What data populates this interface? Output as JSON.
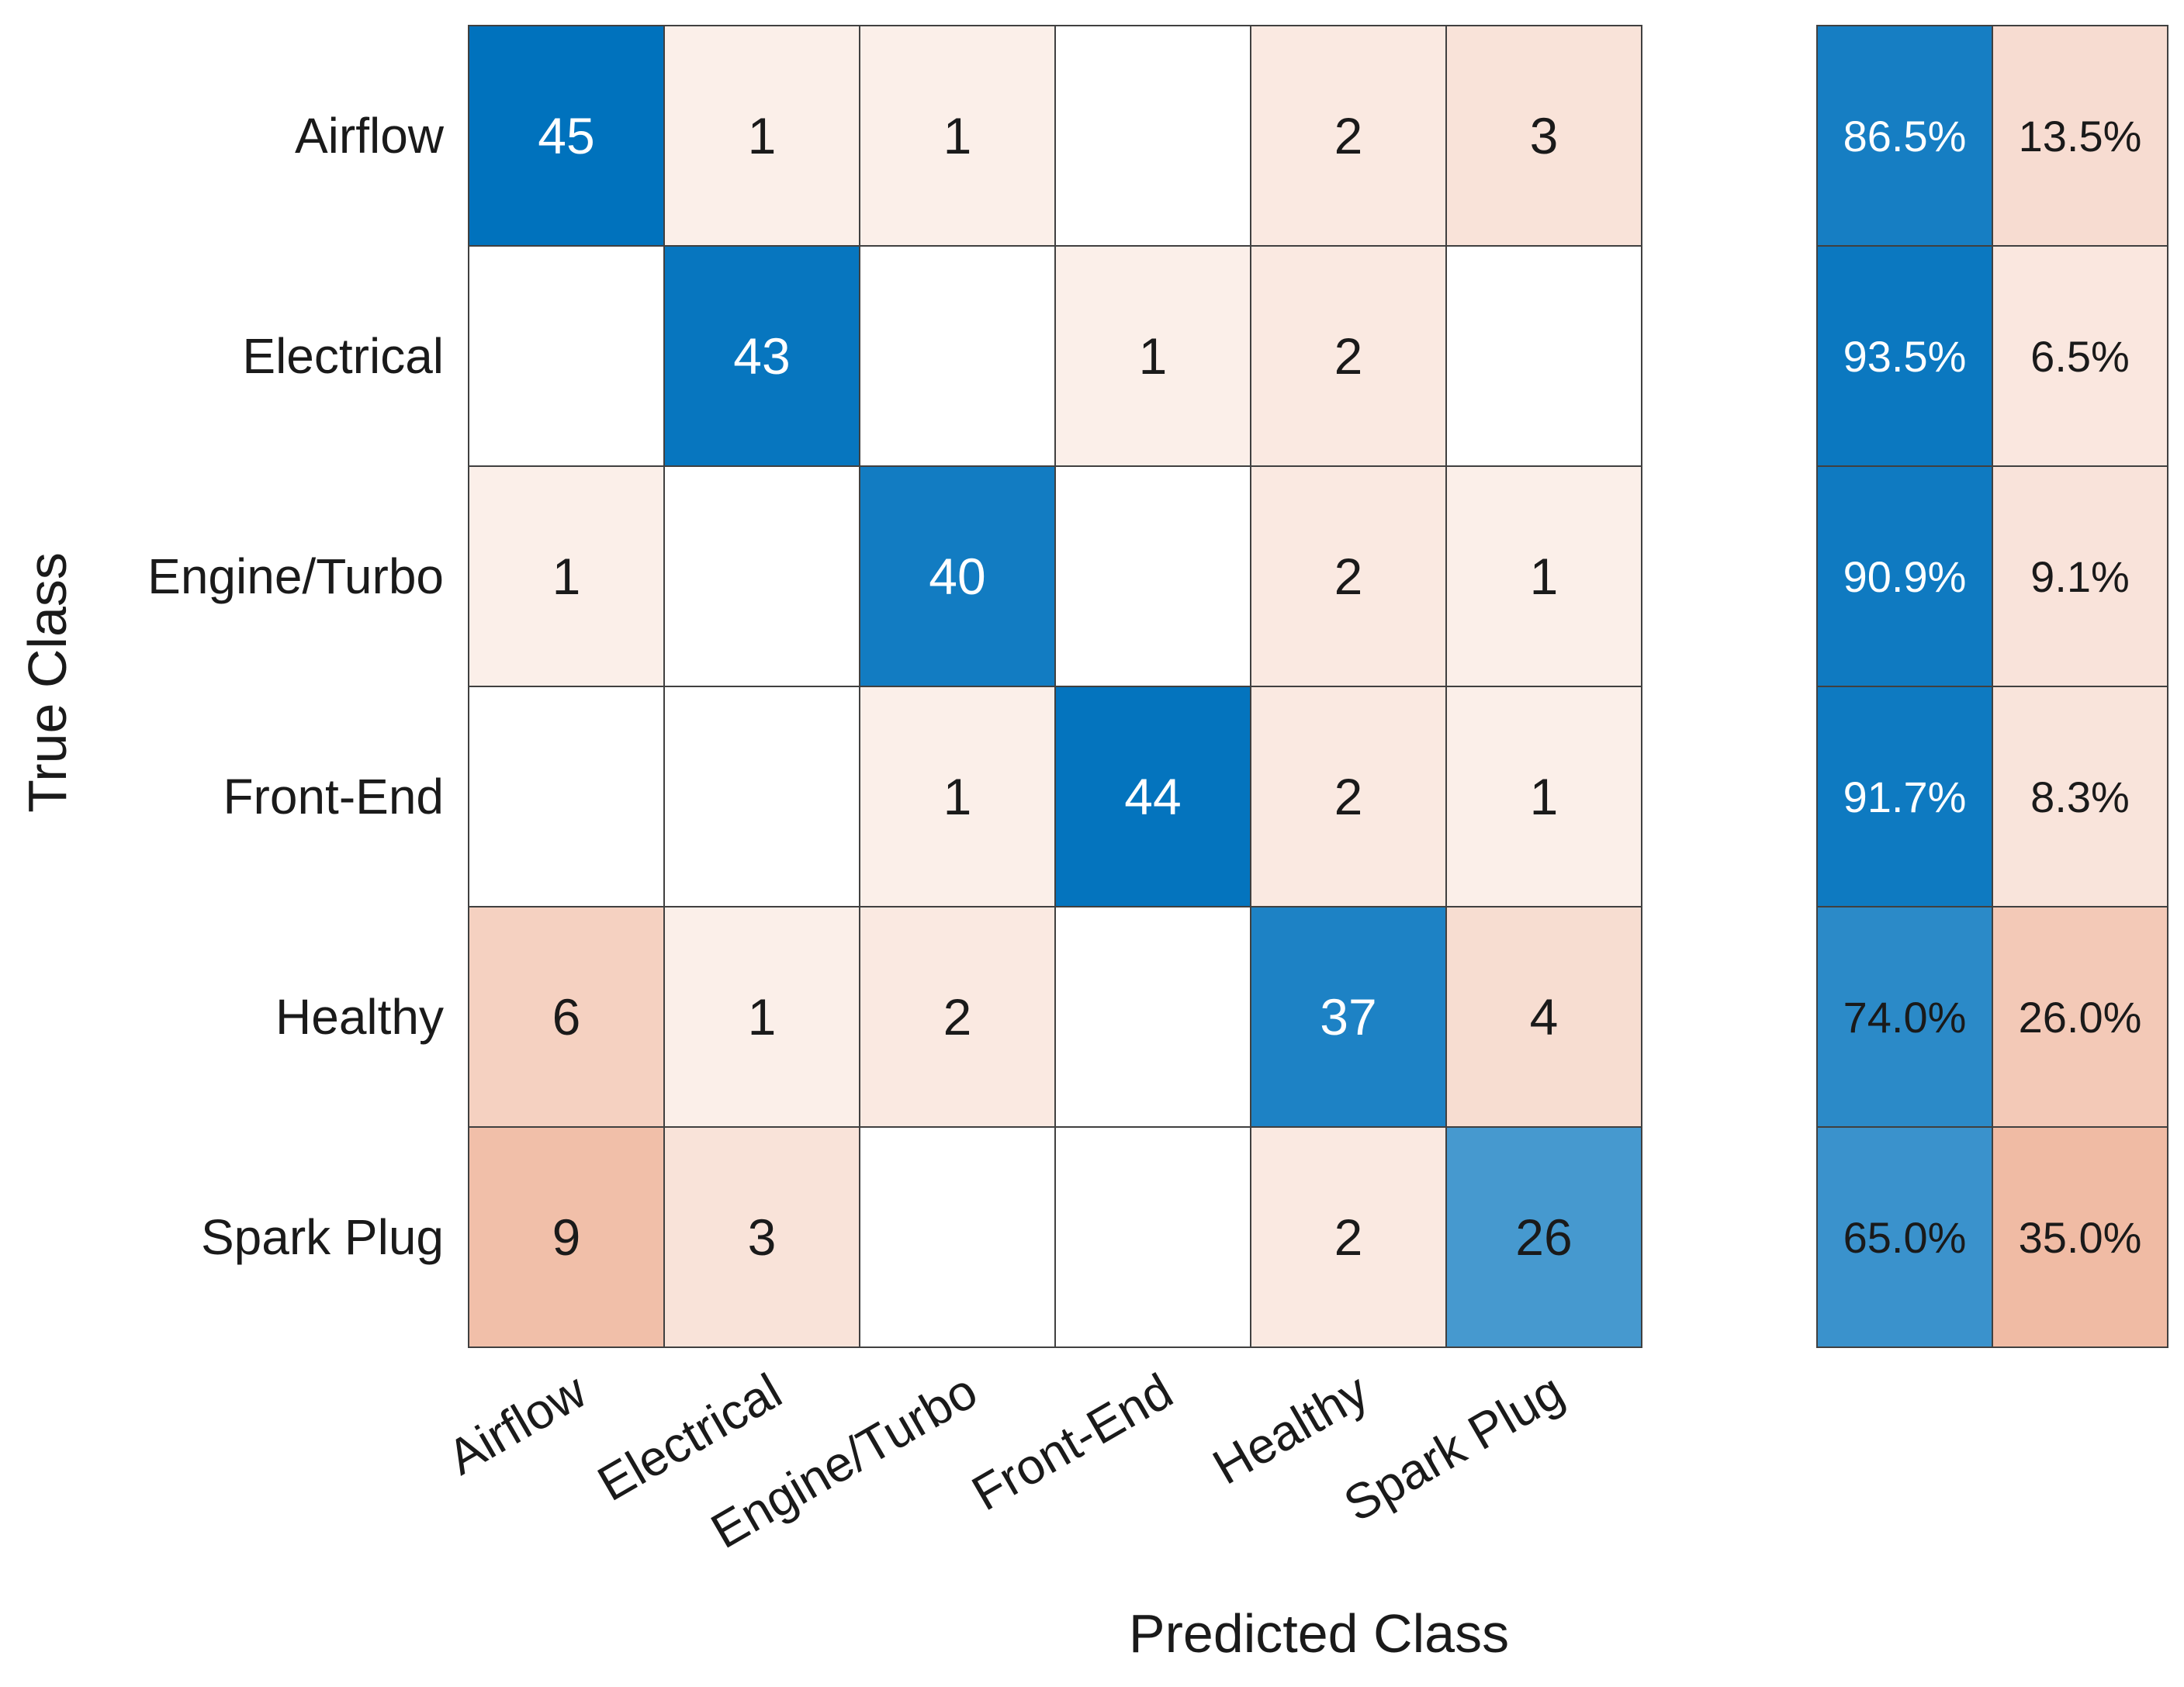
{
  "chart_data": {
    "type": "heatmap",
    "xlabel": "Predicted Class",
    "ylabel": "True Class",
    "classes": [
      "Airflow",
      "Electrical",
      "Engine/Turbo",
      "Front-End",
      "Healthy",
      "Spark Plug"
    ],
    "matrix": [
      [
        45,
        1,
        1,
        0,
        2,
        3
      ],
      [
        0,
        43,
        0,
        1,
        2,
        0
      ],
      [
        1,
        0,
        40,
        0,
        2,
        1
      ],
      [
        0,
        0,
        1,
        44,
        2,
        1
      ],
      [
        6,
        1,
        2,
        0,
        37,
        4
      ],
      [
        9,
        3,
        0,
        0,
        2,
        26
      ]
    ],
    "row_summary": {
      "correct": [
        "86.5%",
        "93.5%",
        "90.9%",
        "91.7%",
        "74.0%",
        "65.0%"
      ],
      "incorrect": [
        "13.5%",
        "6.5%",
        "9.1%",
        "8.3%",
        "26.0%",
        "35.0%"
      ]
    },
    "colors": {
      "diagonal": "#0072BD",
      "off_diagonal": "#D95319",
      "grid": "#404040",
      "text_dark": "#1a1a1a",
      "text_light": "#ffffff"
    }
  }
}
